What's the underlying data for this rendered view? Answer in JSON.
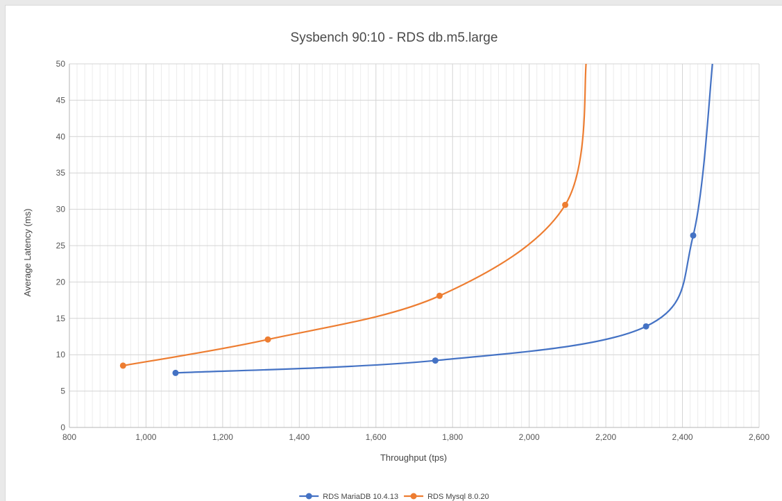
{
  "chart_data": {
    "type": "scatter",
    "title": "Sysbench 90:10 - RDS db.m5.large",
    "xlabel": "Throughput (tps)",
    "ylabel": "Average Latency (ms)",
    "xlim": [
      800,
      2600
    ],
    "ylim": [
      0,
      50
    ],
    "x_ticks": [
      800,
      1000,
      1200,
      1400,
      1600,
      1800,
      2000,
      2200,
      2400,
      2600
    ],
    "x_tick_labels": [
      "800",
      "1,000",
      "1,200",
      "1,400",
      "1,600",
      "1,800",
      "2,000",
      "2,200",
      "2,400",
      "2,600"
    ],
    "y_ticks": [
      0,
      5,
      10,
      15,
      20,
      25,
      30,
      35,
      40,
      45,
      50
    ],
    "grid": true,
    "legend_position": "bottom",
    "series": [
      {
        "name": "RDS MariaDB 10.4.13",
        "color": "#4472c4",
        "points": [
          [
            1077,
            7.5
          ],
          [
            1755,
            9.2
          ],
          [
            2305,
            13.9
          ],
          [
            2428,
            26.4
          ],
          [
            2480,
            51.0
          ]
        ],
        "markers": 4
      },
      {
        "name": "RDS Mysql 8.0.20",
        "color": "#ed7d31",
        "points": [
          [
            940,
            8.5
          ],
          [
            1318,
            12.1
          ],
          [
            1766,
            18.1
          ],
          [
            2094,
            30.6
          ],
          [
            2150,
            51.0
          ]
        ],
        "markers": 4
      }
    ]
  }
}
